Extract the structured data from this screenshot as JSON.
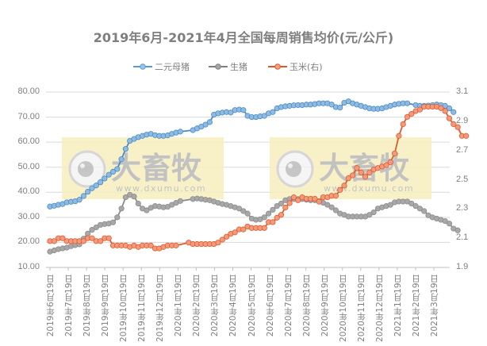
{
  "chart_data": {
    "type": "line",
    "title": "2019年6月-2021年4月全国每周销售均价(元/公斤)",
    "xlabel": "",
    "ylabel": "",
    "y_left": {
      "ylim": [
        10,
        80
      ],
      "ticks": [
        "80.00",
        "70.00",
        "60.00",
        "50.00",
        "40.00",
        "30.00",
        "20.00",
        "10.00"
      ]
    },
    "y_right": {
      "ylim": [
        1.9,
        3.1
      ],
      "ticks": [
        "3.1",
        "2.9",
        "2.7",
        "2.5",
        "2.3",
        "2.1",
        "1.9"
      ]
    },
    "grid": true,
    "legend_position": "top",
    "x_tick_labels": [
      "2019年6月19日",
      "2019年7月19日",
      "2019年8月19日",
      "2019年9月19日",
      "2019年10月19日",
      "2019年11月19日",
      "2019年12月19日",
      "2020年1月19日",
      "2020年2月19日",
      "2020年3月19日",
      "2020年4月19日",
      "2020年5月19日",
      "2020年6月19日",
      "2020年7月19日",
      "2020年8月19日",
      "2020年9月19日",
      "2020年10月19日",
      "2020年11月19日",
      "2020年12月19日",
      "2021年1月19日",
      "2021年2月19日",
      "2021年3月19日"
    ],
    "x_note": "weekly observations starting 2019-06-19",
    "series": [
      {
        "name": "二元母猪",
        "axis": "left",
        "color": "#5b9bd5",
        "values": [
          34.3,
          34.6,
          35.0,
          35.3,
          36.0,
          36.2,
          36.4,
          37.0,
          38.5,
          40.2,
          41.6,
          42.7,
          44.0,
          45.5,
          47.0,
          48.2,
          49.3,
          53.2,
          57.3,
          60.5,
          61.3,
          62.0,
          62.5,
          63.0,
          63.3,
          62.8,
          62.5,
          62.5,
          62.7,
          63.3,
          63.8,
          64.2,
          null,
          null,
          64.8,
          65.5,
          66.2,
          67.0,
          68.0,
          71.0,
          71.5,
          71.8,
          72.0,
          71.8,
          72.8,
          73.0,
          72.8,
          70.5,
          70.0,
          70.0,
          70.3,
          70.5,
          71.5,
          72.0,
          73.5,
          74.0,
          74.3,
          74.5,
          74.7,
          74.8,
          74.8,
          75.0,
          75.0,
          75.2,
          75.5,
          75.5,
          75.5,
          75.0,
          74.0,
          73.8,
          75.7,
          76.3,
          75.5,
          75.0,
          74.5,
          74.0,
          73.5,
          73.3,
          73.3,
          73.5,
          74.0,
          74.5,
          75.0,
          75.3,
          75.5,
          75.5,
          null,
          74.8,
          74.5,
          74.5,
          74.6,
          74.8,
          75.0,
          74.8,
          74.5,
          73.5,
          72.0
        ]
      },
      {
        "name": "生猪",
        "axis": "left",
        "color": "#a5a5a5",
        "values": [
          16.3,
          16.8,
          17.3,
          17.6,
          17.9,
          18.5,
          18.9,
          19.2,
          21.5,
          23.5,
          25.0,
          26.0,
          27.0,
          27.3,
          27.5,
          28.0,
          30.0,
          33.5,
          38.0,
          39.0,
          38.3,
          35.5,
          33.5,
          32.8,
          33.8,
          34.5,
          34.3,
          34.0,
          34.2,
          35.0,
          35.8,
          36.5,
          null,
          null,
          37.3,
          37.5,
          37.3,
          37.0,
          36.8,
          36.3,
          35.8,
          35.3,
          35.0,
          34.5,
          34.0,
          33.5,
          32.5,
          31.5,
          29.5,
          29.0,
          29.2,
          30.0,
          31.5,
          33.0,
          34.5,
          35.5,
          36.8,
          37.3,
          37.3,
          37.3,
          37.3,
          37.0,
          36.8,
          36.8,
          36.5,
          35.8,
          35.0,
          34.0,
          32.8,
          31.5,
          31.0,
          30.3,
          30.3,
          30.3,
          30.3,
          30.3,
          31.0,
          32.0,
          33.5,
          34.0,
          34.5,
          35.0,
          36.0,
          36.3,
          36.3,
          36.3,
          35.5,
          34.5,
          33.5,
          32.5,
          30.8,
          30.0,
          29.5,
          29.0,
          28.5,
          27.5,
          25.5,
          24.8
        ]
      },
      {
        "name": "玉米(右)",
        "axis": "right",
        "color": "#ed7d31",
        "values": [
          2.08,
          2.08,
          2.1,
          2.1,
          2.08,
          2.08,
          2.08,
          2.08,
          2.08,
          2.1,
          2.1,
          2.08,
          2.08,
          2.1,
          2.1,
          2.05,
          2.05,
          2.05,
          2.05,
          2.04,
          2.05,
          2.04,
          2.05,
          2.05,
          2.05,
          2.03,
          2.03,
          2.04,
          2.05,
          2.05,
          2.05,
          null,
          null,
          2.07,
          2.06,
          2.06,
          2.06,
          2.06,
          2.06,
          2.06,
          2.07,
          2.09,
          2.11,
          2.13,
          2.14,
          2.16,
          2.16,
          2.18,
          2.17,
          2.17,
          2.17,
          2.17,
          2.21,
          2.21,
          2.24,
          2.26,
          2.31,
          2.34,
          2.38,
          2.36,
          2.38,
          2.37,
          2.37,
          2.37,
          2.35,
          2.38,
          2.38,
          2.39,
          2.39,
          2.43,
          2.46,
          2.51,
          2.53,
          2.58,
          2.55,
          2.52,
          2.55,
          2.57,
          2.58,
          2.59,
          2.6,
          2.62,
          2.68,
          2.8,
          2.88,
          2.93,
          2.95,
          2.97,
          2.98,
          3.0,
          3.0,
          3.0,
          3.0,
          2.99,
          2.97,
          2.92,
          2.88,
          2.86,
          2.8,
          2.8
        ]
      }
    ]
  },
  "title": "2019年6月-2021年4月全国每周销售均价(元/公斤)",
  "legend": [
    {
      "label": "二元母猪",
      "color": "#5b9bd5"
    },
    {
      "label": "生猪",
      "color": "#a5a5a5"
    },
    {
      "label": "玉米(右)",
      "color": "#ed7d31"
    }
  ],
  "watermark": {
    "brand": "大畜牧",
    "url": "www.dxumu.com"
  }
}
